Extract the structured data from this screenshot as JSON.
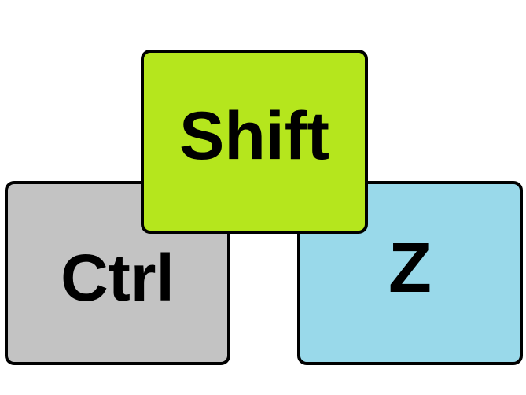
{
  "keys": {
    "ctrl": {
      "label": "Ctrl",
      "color": "#c3c3c3"
    },
    "shift": {
      "label": "Shift",
      "color": "#b5e61d"
    },
    "z": {
      "label": "Z",
      "color": "#99d9ea"
    }
  },
  "colors": {
    "background": "#ffffff",
    "outline": "#000000",
    "text": "#000000"
  }
}
